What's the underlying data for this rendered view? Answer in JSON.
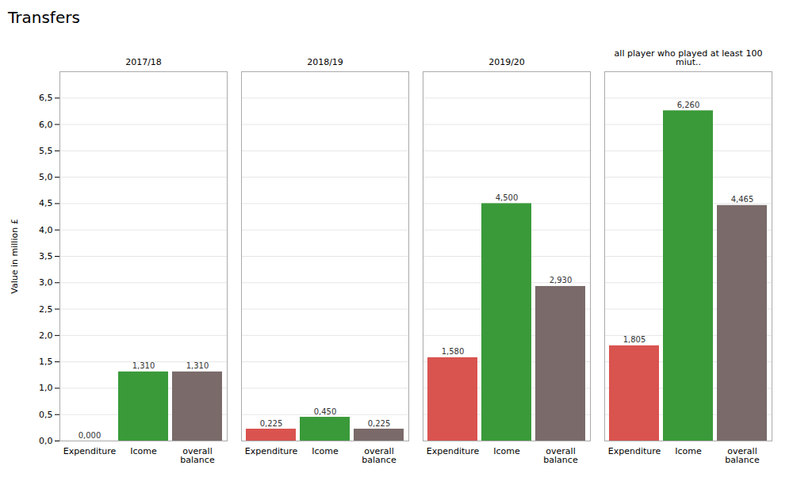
{
  "chart_data": {
    "type": "bar",
    "title": "Transfers",
    "ylabel": "Value in million £",
    "categories": [
      "2017/18",
      "2018/19",
      "2019/20",
      "all player who played at least 100 miut.."
    ],
    "series": [
      {
        "name": "Expenditure",
        "color": "#d9534f",
        "values": [
          0.0,
          0.225,
          1.58,
          1.805
        ],
        "value_labels": [
          "0,000",
          "0,225",
          "1,580",
          "1,805"
        ]
      },
      {
        "name": "Icome",
        "color": "#3a9a3a",
        "values": [
          1.31,
          0.45,
          4.5,
          6.26
        ],
        "value_labels": [
          "1,310",
          "0,450",
          "4,500",
          "6,260"
        ]
      },
      {
        "name": "overall balance",
        "color": "#7a6a6a",
        "values": [
          1.31,
          0.225,
          2.93,
          4.465
        ],
        "value_labels": [
          "1,310",
          "0,225",
          "2,930",
          "4,465"
        ]
      }
    ],
    "ylim": [
      0,
      7.0
    ],
    "yticks": [
      {
        "value": 0.0,
        "label": "0,0"
      },
      {
        "value": 0.5,
        "label": "0,5"
      },
      {
        "value": 1.0,
        "label": "1,0"
      },
      {
        "value": 1.5,
        "label": "1,5"
      },
      {
        "value": 2.0,
        "label": "2,0"
      },
      {
        "value": 2.5,
        "label": "2,5"
      },
      {
        "value": 3.0,
        "label": "3,0"
      },
      {
        "value": 3.5,
        "label": "3,5"
      },
      {
        "value": 4.0,
        "label": "4,0"
      },
      {
        "value": 4.5,
        "label": "4,5"
      },
      {
        "value": 5.0,
        "label": "5,0"
      },
      {
        "value": 5.5,
        "label": "5,5"
      },
      {
        "value": 6.0,
        "label": "6,0"
      },
      {
        "value": 6.5,
        "label": "6,5"
      }
    ],
    "grid": true,
    "data_labels": true
  }
}
